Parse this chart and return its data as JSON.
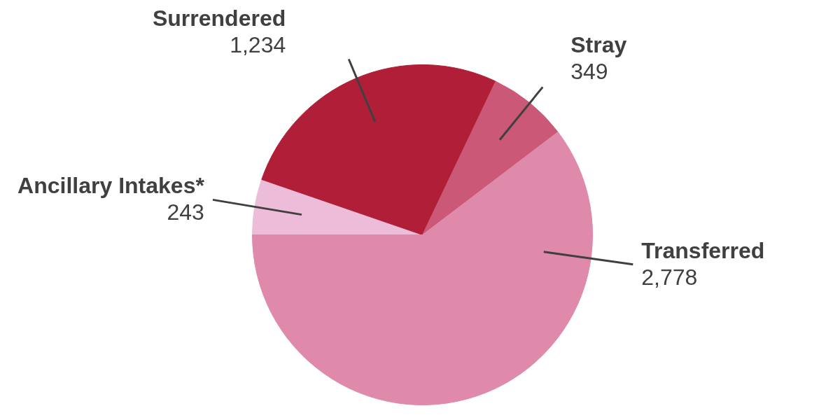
{
  "chart_data": {
    "type": "pie",
    "categories": [
      "Ancillary Intakes*",
      "Surrendered",
      "Stray",
      "Transferred"
    ],
    "values": [
      243,
      1234,
      349,
      2778
    ],
    "colors": [
      "#ecbcd9",
      "#b01f37",
      "#cc5877",
      "#df89ab"
    ],
    "value_labels": [
      "243",
      "1,234",
      "349",
      "2,778"
    ]
  }
}
